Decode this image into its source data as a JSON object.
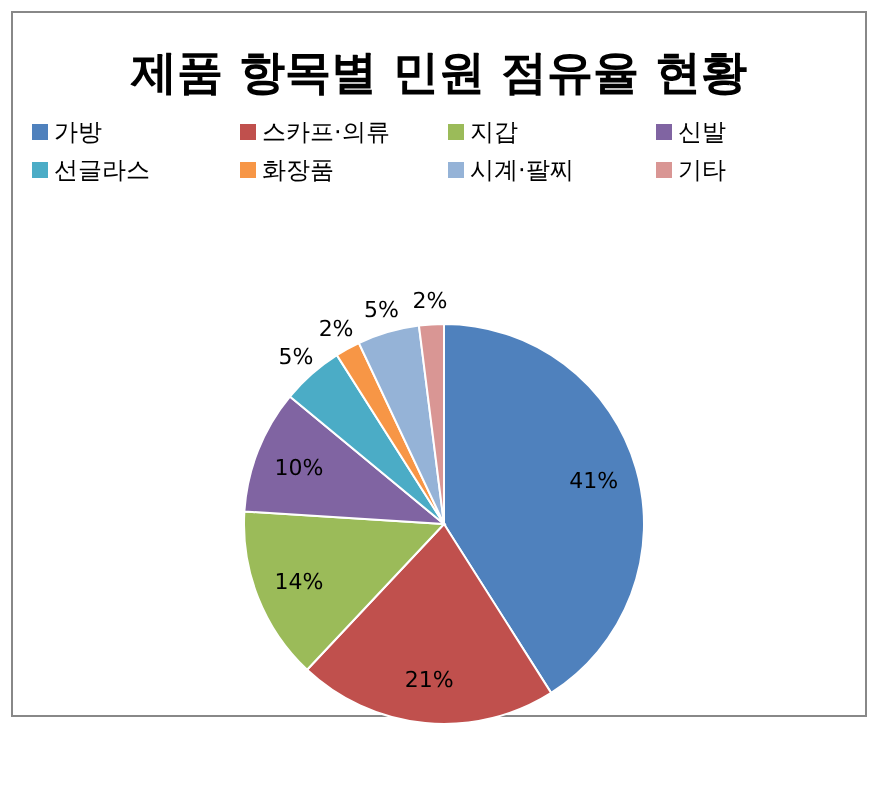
{
  "chart_data": {
    "type": "pie",
    "title": "제품 항목별 민원 점유율 현황",
    "categories": [
      "가방",
      "스카프·의류",
      "지갑",
      "신발",
      "선글라스",
      "화장품",
      "시계·팔찌",
      "기타"
    ],
    "values": [
      41,
      21,
      14,
      10,
      5,
      2,
      5,
      2
    ],
    "colors": [
      "#4f81bd",
      "#c0504d",
      "#9bbb59",
      "#8064a2",
      "#4bacc6",
      "#f79646",
      "#95b3d7",
      "#d99694"
    ],
    "value_labels": [
      "41%",
      "21%",
      "14%",
      "10%",
      "5%",
      "2%",
      "5%",
      "2%"
    ],
    "legend": "top"
  }
}
